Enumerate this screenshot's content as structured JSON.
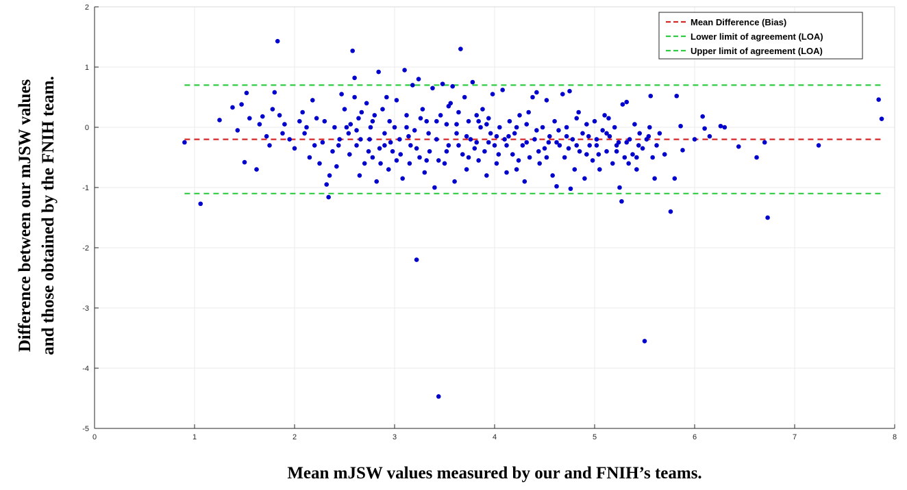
{
  "chart_data": {
    "type": "scatter",
    "title": "",
    "xlabel": "Mean mJSW values measured by our and FNIH’s teams.",
    "ylabel_lines": [
      "Difference between our mJSW values",
      "and those obtained by the FNIH team."
    ],
    "xlim": [
      0,
      8
    ],
    "ylim": [
      -5,
      2
    ],
    "x_ticks": [
      "0",
      "1",
      "2",
      "3",
      "4",
      "5",
      "6",
      "7",
      "8"
    ],
    "y_ticks": [
      "2",
      "1",
      "0",
      "-1",
      "-2",
      "-3",
      "-4",
      "-5"
    ],
    "grid": true,
    "legend_position": "top-right",
    "reference_lines": [
      {
        "name": "Mean Difference (Bias)",
        "y": -0.2,
        "color": "#d62728",
        "style": "dashed"
      },
      {
        "name": "Lower limit of agreement (LOA)",
        "y": -1.1,
        "color": "#2ecc40",
        "style": "dashed"
      },
      {
        "name": "Upper limit of agreement (LOA)",
        "y": 0.7,
        "color": "#2ecc40",
        "style": "dashed"
      }
    ],
    "series": [
      {
        "marker_color": "#0000cc",
        "points": [
          [
            0.9,
            -0.25
          ],
          [
            1.06,
            -1.27
          ],
          [
            1.25,
            0.12
          ],
          [
            1.38,
            0.33
          ],
          [
            1.43,
            -0.05
          ],
          [
            1.47,
            0.38
          ],
          [
            1.5,
            -0.58
          ],
          [
            1.52,
            0.57
          ],
          [
            1.55,
            0.15
          ],
          [
            1.62,
            -0.7
          ],
          [
            1.65,
            0.05
          ],
          [
            1.68,
            0.18
          ],
          [
            1.72,
            -0.15
          ],
          [
            1.75,
            -0.3
          ],
          [
            1.78,
            0.3
          ],
          [
            1.8,
            0.58
          ],
          [
            1.83,
            1.43
          ],
          [
            1.85,
            0.2
          ],
          [
            1.88,
            -0.1
          ],
          [
            1.9,
            0.05
          ],
          [
            1.95,
            -0.2
          ],
          [
            2.0,
            -0.35
          ],
          [
            2.05,
            0.1
          ],
          [
            2.08,
            0.25
          ],
          [
            2.1,
            -0.1
          ],
          [
            2.12,
            0.0
          ],
          [
            2.15,
            -0.5
          ],
          [
            2.18,
            0.45
          ],
          [
            2.2,
            -0.3
          ],
          [
            2.22,
            0.15
          ],
          [
            2.25,
            -0.6
          ],
          [
            2.28,
            -0.25
          ],
          [
            2.3,
            0.1
          ],
          [
            2.32,
            -0.95
          ],
          [
            2.34,
            -1.16
          ],
          [
            2.35,
            -0.8
          ],
          [
            2.38,
            -0.4
          ],
          [
            2.4,
            0.0
          ],
          [
            2.42,
            -0.65
          ],
          [
            2.45,
            -0.2
          ],
          [
            2.47,
            0.55
          ],
          [
            2.5,
            0.3
          ],
          [
            2.52,
            0.0
          ],
          [
            2.55,
            -0.45
          ],
          [
            2.56,
            0.05
          ],
          [
            2.58,
            1.27
          ],
          [
            2.6,
            0.82
          ],
          [
            2.6,
            0.5
          ],
          [
            2.62,
            -0.3
          ],
          [
            2.64,
            0.15
          ],
          [
            2.65,
            -0.8
          ],
          [
            2.67,
            0.25
          ],
          [
            2.7,
            -0.6
          ],
          [
            2.72,
            0.4
          ],
          [
            2.75,
            -0.2
          ],
          [
            2.76,
            0.0
          ],
          [
            2.78,
            -0.5
          ],
          [
            2.8,
            0.2
          ],
          [
            2.82,
            -0.9
          ],
          [
            2.84,
            0.92
          ],
          [
            2.85,
            -0.35
          ],
          [
            2.88,
            0.3
          ],
          [
            2.9,
            -0.1
          ],
          [
            2.92,
            0.5
          ],
          [
            2.94,
            -0.7
          ],
          [
            2.95,
            0.1
          ],
          [
            2.98,
            -0.4
          ],
          [
            3.0,
            0.0
          ],
          [
            3.02,
            0.45
          ],
          [
            3.05,
            -0.2
          ],
          [
            3.08,
            -0.85
          ],
          [
            3.1,
            0.95
          ],
          [
            3.12,
            0.2
          ],
          [
            3.15,
            -0.6
          ],
          [
            3.16,
            -0.3
          ],
          [
            3.18,
            0.7
          ],
          [
            3.2,
            -0.05
          ],
          [
            3.22,
            -2.2
          ],
          [
            3.24,
            0.8
          ],
          [
            3.25,
            -0.5
          ],
          [
            3.28,
            0.3
          ],
          [
            3.3,
            -0.75
          ],
          [
            3.32,
            0.1
          ],
          [
            3.35,
            -0.4
          ],
          [
            3.38,
            0.65
          ],
          [
            3.4,
            -1.0
          ],
          [
            3.42,
            -0.2
          ],
          [
            3.44,
            -4.47
          ],
          [
            3.46,
            0.2
          ],
          [
            3.48,
            0.72
          ],
          [
            3.5,
            -0.6
          ],
          [
            3.52,
            0.05
          ],
          [
            3.54,
            -0.3
          ],
          [
            3.56,
            0.4
          ],
          [
            3.58,
            0.68
          ],
          [
            3.6,
            -0.9
          ],
          [
            3.62,
            -0.1
          ],
          [
            3.64,
            0.25
          ],
          [
            3.66,
            1.3
          ],
          [
            3.68,
            -0.45
          ],
          [
            3.7,
            0.5
          ],
          [
            3.72,
            -0.7
          ],
          [
            3.74,
            0.1
          ],
          [
            3.76,
            -0.2
          ],
          [
            3.78,
            0.75
          ],
          [
            3.8,
            -0.35
          ],
          [
            3.82,
            0.2
          ],
          [
            3.84,
            -0.55
          ],
          [
            3.86,
            0.0
          ],
          [
            3.88,
            0.3
          ],
          [
            3.9,
            -0.4
          ],
          [
            3.92,
            -0.8
          ],
          [
            3.94,
            0.15
          ],
          [
            3.96,
            -0.1
          ],
          [
            3.98,
            0.55
          ],
          [
            4.0,
            -0.3
          ],
          [
            4.02,
            -0.6
          ],
          [
            4.05,
            0.0
          ],
          [
            4.08,
            0.62
          ],
          [
            4.1,
            -0.2
          ],
          [
            4.12,
            -0.75
          ],
          [
            4.15,
            0.1
          ],
          [
            4.18,
            -0.45
          ],
          [
            4.2,
            -0.1
          ],
          [
            4.22,
            -0.7
          ],
          [
            4.25,
            0.2
          ],
          [
            4.28,
            -0.3
          ],
          [
            4.3,
            -0.9
          ],
          [
            4.32,
            0.05
          ],
          [
            4.35,
            -0.5
          ],
          [
            4.38,
            0.5
          ],
          [
            4.4,
            -0.2
          ],
          [
            4.42,
            0.58
          ],
          [
            4.45,
            -0.6
          ],
          [
            4.48,
            0.0
          ],
          [
            4.5,
            -0.35
          ],
          [
            4.52,
            0.45
          ],
          [
            4.55,
            -0.15
          ],
          [
            4.58,
            -0.8
          ],
          [
            4.6,
            0.1
          ],
          [
            4.62,
            -0.98
          ],
          [
            4.65,
            -0.3
          ],
          [
            4.68,
            0.55
          ],
          [
            4.7,
            -0.5
          ],
          [
            4.72,
            0.0
          ],
          [
            4.75,
            0.6
          ],
          [
            4.76,
            -1.02
          ],
          [
            4.78,
            -0.2
          ],
          [
            4.8,
            -0.7
          ],
          [
            4.82,
            0.15
          ],
          [
            4.85,
            -0.4
          ],
          [
            4.88,
            -0.1
          ],
          [
            4.9,
            -0.85
          ],
          [
            4.92,
            0.05
          ],
          [
            4.95,
            -0.3
          ],
          [
            4.98,
            -0.55
          ],
          [
            5.0,
            0.1
          ],
          [
            5.02,
            -0.2
          ],
          [
            5.05,
            -0.7
          ],
          [
            5.08,
            -0.05
          ],
          [
            5.1,
            0.2
          ],
          [
            5.12,
            -0.4
          ],
          [
            5.15,
            -0.15
          ],
          [
            5.18,
            -0.6
          ],
          [
            5.2,
            0.0
          ],
          [
            5.22,
            -0.3
          ],
          [
            5.25,
            -1.0
          ],
          [
            5.27,
            -1.23
          ],
          [
            5.28,
            0.38
          ],
          [
            5.3,
            -0.5
          ],
          [
            5.32,
            0.42
          ],
          [
            5.35,
            -0.2
          ],
          [
            5.38,
            -0.45
          ],
          [
            5.4,
            0.05
          ],
          [
            5.42,
            -0.7
          ],
          [
            5.45,
            -0.1
          ],
          [
            5.48,
            -0.35
          ],
          [
            5.5,
            -3.55
          ],
          [
            5.52,
            -0.2
          ],
          [
            5.55,
            0.0
          ],
          [
            5.56,
            0.52
          ],
          [
            5.58,
            -0.5
          ],
          [
            5.6,
            -0.85
          ],
          [
            5.62,
            -0.3
          ],
          [
            5.65,
            -0.1
          ],
          [
            5.7,
            -0.45
          ],
          [
            5.76,
            -1.4
          ],
          [
            5.8,
            -0.85
          ],
          [
            5.82,
            0.52
          ],
          [
            5.86,
            0.02
          ],
          [
            5.88,
            -0.38
          ],
          [
            6.0,
            -0.2
          ],
          [
            6.08,
            0.18
          ],
          [
            6.1,
            -0.02
          ],
          [
            6.15,
            -0.15
          ],
          [
            6.26,
            0.02
          ],
          [
            6.3,
            0.0
          ],
          [
            6.44,
            -0.32
          ],
          [
            6.62,
            -0.5
          ],
          [
            6.7,
            -0.25
          ],
          [
            6.73,
            -1.5
          ],
          [
            7.24,
            -0.3
          ],
          [
            7.84,
            0.46
          ],
          [
            7.87,
            0.14
          ],
          [
            2.62,
            -0.05
          ],
          [
            2.74,
            -0.4
          ],
          [
            2.86,
            -0.6
          ],
          [
            2.96,
            -0.25
          ],
          [
            3.06,
            -0.45
          ],
          [
            3.14,
            -0.15
          ],
          [
            3.26,
            0.15
          ],
          [
            3.34,
            -0.1
          ],
          [
            3.44,
            -0.55
          ],
          [
            3.54,
            0.35
          ],
          [
            3.64,
            -0.3
          ],
          [
            3.74,
            -0.5
          ],
          [
            3.84,
            0.1
          ],
          [
            3.94,
            -0.25
          ],
          [
            4.04,
            -0.45
          ],
          [
            4.14,
            -0.15
          ],
          [
            4.24,
            -0.55
          ],
          [
            4.34,
            0.25
          ],
          [
            4.44,
            -0.4
          ],
          [
            4.54,
            -0.25
          ],
          [
            4.64,
            -0.05
          ],
          [
            4.74,
            -0.35
          ],
          [
            4.84,
            0.25
          ],
          [
            4.94,
            -0.15
          ],
          [
            5.04,
            -0.45
          ],
          [
            5.14,
            0.15
          ],
          [
            5.24,
            -0.25
          ],
          [
            5.34,
            -0.6
          ],
          [
            5.44,
            -0.3
          ],
          [
            5.54,
            -0.15
          ],
          [
            2.54,
            -0.1
          ],
          [
            2.66,
            -0.2
          ],
          [
            2.78,
            0.1
          ],
          [
            2.9,
            -0.3
          ],
          [
            3.02,
            -0.55
          ],
          [
            3.12,
            0.0
          ],
          [
            3.22,
            -0.35
          ],
          [
            3.32,
            -0.55
          ],
          [
            3.42,
            0.1
          ],
          [
            3.52,
            -0.4
          ],
          [
            3.62,
            0.05
          ],
          [
            3.72,
            -0.15
          ],
          [
            3.82,
            -0.25
          ],
          [
            3.92,
            0.05
          ],
          [
            4.02,
            -0.15
          ],
          [
            4.12,
            -0.3
          ],
          [
            4.22,
            0.0
          ],
          [
            4.32,
            -0.25
          ],
          [
            4.42,
            -0.05
          ],
          [
            4.52,
            -0.5
          ],
          [
            4.62,
            -0.25
          ],
          [
            4.72,
            -0.15
          ],
          [
            4.82,
            -0.3
          ],
          [
            4.92,
            -0.45
          ],
          [
            5.02,
            -0.3
          ],
          [
            5.12,
            -0.1
          ],
          [
            5.22,
            -0.4
          ],
          [
            5.32,
            -0.25
          ],
          [
            5.42,
            -0.5
          ],
          [
            2.44,
            -0.3
          ]
        ]
      }
    ]
  }
}
